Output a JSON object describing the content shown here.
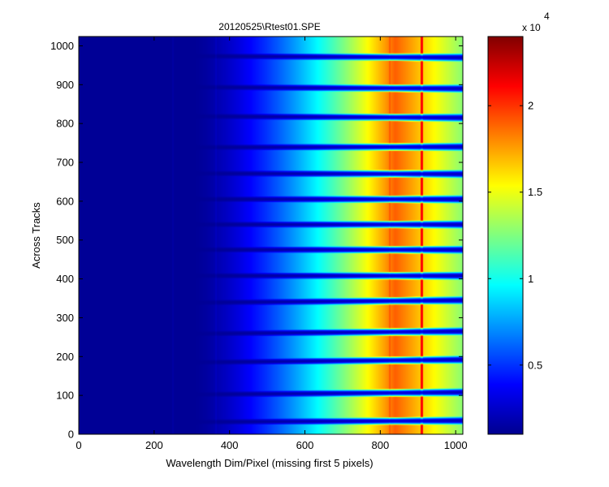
{
  "chart_data": {
    "type": "heatmap",
    "title": "20120525\\Rtest01.SPE",
    "xlabel": "Wavelength Dim/Pixel (missing first 5 pixels)",
    "ylabel": "Across Tracks",
    "xlim": [
      0,
      1019
    ],
    "ylim": [
      0,
      1024
    ],
    "x_ticks": [
      0,
      200,
      400,
      600,
      800,
      1000
    ],
    "y_ticks": [
      0,
      100,
      200,
      300,
      400,
      500,
      600,
      700,
      800,
      900,
      1000
    ],
    "colorbar": {
      "colormap": "jet",
      "range": [
        1000,
        24000
      ],
      "ticks": [
        {
          "value": 5000,
          "label": "0.5"
        },
        {
          "value": 10000,
          "label": "1"
        },
        {
          "value": 15000,
          "label": "1.5"
        },
        {
          "value": 20000,
          "label": "2"
        }
      ],
      "exponent_base": "x 10",
      "exponent": "4"
    },
    "dark_track_gaps": [
      {
        "y_left": 30,
        "y_right": 35
      },
      {
        "y_left": 100,
        "y_right": 108
      },
      {
        "y_left": 182,
        "y_right": 192
      },
      {
        "y_left": 256,
        "y_right": 265
      },
      {
        "y_left": 336,
        "y_right": 345
      },
      {
        "y_left": 408,
        "y_right": 408
      },
      {
        "y_left": 475,
        "y_right": 475
      },
      {
        "y_left": 540,
        "y_right": 540
      },
      {
        "y_left": 605,
        "y_right": 605
      },
      {
        "y_left": 672,
        "y_right": 670
      },
      {
        "y_left": 738,
        "y_right": 740
      },
      {
        "y_left": 820,
        "y_right": 815
      },
      {
        "y_left": 895,
        "y_right": 890
      },
      {
        "y_left": 975,
        "y_right": 970
      }
    ],
    "bright_columns": [
      {
        "x": 825,
        "relative_intensity": 1.05
      },
      {
        "x": 910,
        "relative_intensity": 1.3
      }
    ],
    "faint_columns": [
      250,
      365
    ],
    "background_level": 1500,
    "peak_level": 19000,
    "peak_pixel": 840,
    "signal_onset_pixel": 300,
    "grid": false
  }
}
